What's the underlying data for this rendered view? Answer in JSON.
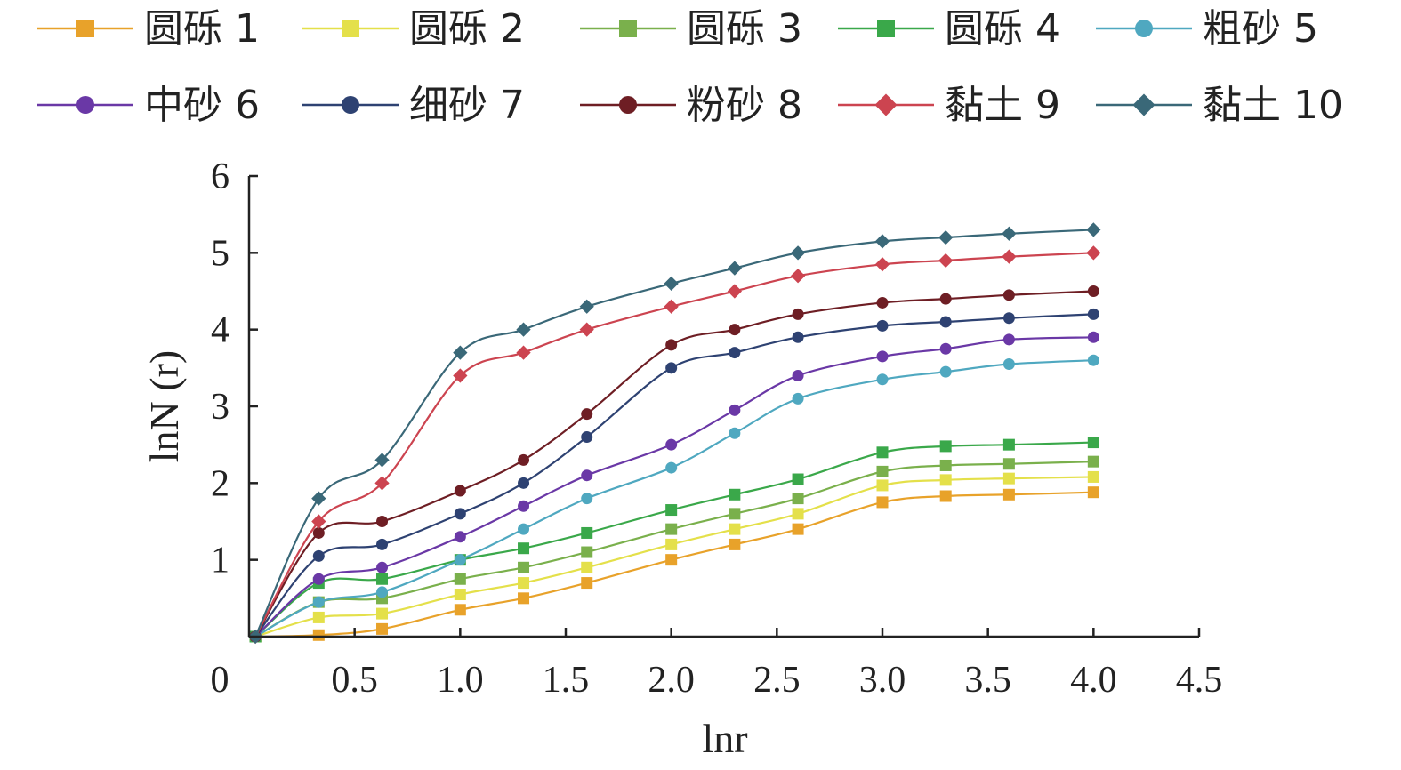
{
  "chart_data": {
    "type": "line",
    "title": "",
    "xlabel": "lnr",
    "ylabel": "lnN (r)",
    "xlim": [
      0,
      4.5
    ],
    "ylim": [
      0,
      6
    ],
    "origin_label": "0",
    "x_ticks": [
      {
        "value": 0.5,
        "label": "0.5"
      },
      {
        "value": 1.0,
        "label": "1.0"
      },
      {
        "value": 1.5,
        "label": "1.5"
      },
      {
        "value": 2.0,
        "label": "2.0"
      },
      {
        "value": 2.5,
        "label": "2.5"
      },
      {
        "value": 3.0,
        "label": "3.0"
      },
      {
        "value": 3.5,
        "label": "3.5"
      },
      {
        "value": 4.0,
        "label": "4.0"
      },
      {
        "value": 4.5,
        "label": "4.5"
      }
    ],
    "y_ticks": [
      {
        "value": 1,
        "label": "1"
      },
      {
        "value": 2,
        "label": "2"
      },
      {
        "value": 3,
        "label": "3"
      },
      {
        "value": 4,
        "label": "4"
      },
      {
        "value": 5,
        "label": "5"
      },
      {
        "value": 6,
        "label": "6"
      }
    ],
    "grid": false,
    "legend_position": "top",
    "x": [
      0.03,
      0.33,
      0.63,
      1.0,
      1.3,
      1.6,
      2.0,
      2.3,
      2.6,
      3.0,
      3.3,
      3.6,
      4.0
    ],
    "series": [
      {
        "name": "圆砾 1",
        "color": "#e8a22a",
        "marker": "square",
        "values": [
          0,
          0.02,
          0.1,
          0.35,
          0.5,
          0.7,
          1.0,
          1.2,
          1.4,
          1.75,
          1.83,
          1.85,
          1.88
        ]
      },
      {
        "name": "圆砾 2",
        "color": "#e4e04a",
        "marker": "square",
        "values": [
          0,
          0.25,
          0.3,
          0.55,
          0.7,
          0.9,
          1.2,
          1.4,
          1.6,
          1.97,
          2.04,
          2.06,
          2.08
        ]
      },
      {
        "name": "圆砾 3",
        "color": "#7ab04c",
        "marker": "square",
        "values": [
          0,
          0.45,
          0.5,
          0.75,
          0.9,
          1.1,
          1.4,
          1.6,
          1.8,
          2.15,
          2.23,
          2.25,
          2.28
        ]
      },
      {
        "name": "圆砾 4",
        "color": "#3aa84a",
        "marker": "square",
        "values": [
          0,
          0.7,
          0.75,
          1.0,
          1.15,
          1.35,
          1.65,
          1.85,
          2.05,
          2.4,
          2.48,
          2.5,
          2.53
        ]
      },
      {
        "name": "粗砂 5",
        "color": "#4fa8c0",
        "marker": "circle",
        "values": [
          0,
          0.45,
          0.58,
          1.0,
          1.4,
          1.8,
          2.2,
          2.65,
          3.1,
          3.35,
          3.45,
          3.55,
          3.6
        ]
      },
      {
        "name": "中砂 6",
        "color": "#6a38a6",
        "marker": "circle",
        "values": [
          0,
          0.75,
          0.9,
          1.3,
          1.7,
          2.1,
          2.5,
          2.95,
          3.4,
          3.65,
          3.75,
          3.87,
          3.9
        ]
      },
      {
        "name": "细砂 7",
        "color": "#2e4272",
        "marker": "circle",
        "values": [
          0,
          1.05,
          1.2,
          1.6,
          2.0,
          2.6,
          3.5,
          3.7,
          3.9,
          4.05,
          4.1,
          4.15,
          4.2
        ]
      },
      {
        "name": "粉砂 8",
        "color": "#6e1e24",
        "marker": "circle",
        "values": [
          0,
          1.35,
          1.5,
          1.9,
          2.3,
          2.9,
          3.8,
          4.0,
          4.2,
          4.35,
          4.4,
          4.45,
          4.5
        ]
      },
      {
        "name": "黏土 9",
        "color": "#cc4450",
        "marker": "diamond",
        "values": [
          0,
          1.5,
          2.0,
          3.4,
          3.7,
          4.0,
          4.3,
          4.5,
          4.7,
          4.85,
          4.9,
          4.95,
          5.0
        ]
      },
      {
        "name": "黏土 10",
        "color": "#3a6878",
        "marker": "diamond",
        "values": [
          0,
          1.8,
          2.3,
          3.7,
          4.0,
          4.3,
          4.6,
          4.8,
          5.0,
          5.15,
          5.2,
          5.25,
          5.3
        ]
      }
    ]
  }
}
